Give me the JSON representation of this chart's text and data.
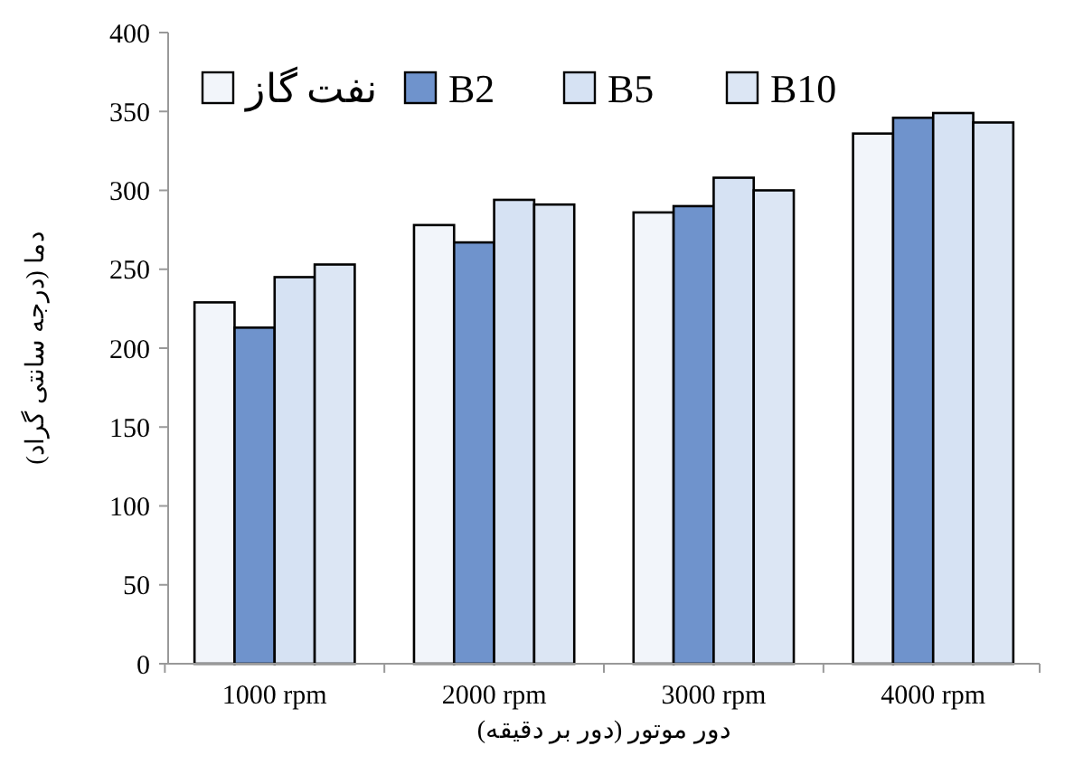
{
  "chart_data": {
    "type": "bar",
    "xlabel": "دور موتور (دور بر دقیقه)",
    "ylabel": "دما (درجه سانتی گراد)",
    "categories": [
      "1000 rpm",
      "2000 rpm",
      "3000 rpm",
      "4000 rpm"
    ],
    "series": [
      {
        "name": "نفت گاز",
        "color": "#f2f5fa",
        "values": [
          229,
          278,
          286,
          336
        ]
      },
      {
        "name": "B2",
        "color": "#6f93cc",
        "values": [
          213,
          267,
          290,
          346
        ]
      },
      {
        "name": "B5",
        "color": "#d6e2f3",
        "values": [
          245,
          294,
          308,
          349
        ]
      },
      {
        "name": "B10",
        "color": "#dce6f4",
        "values": [
          253,
          291,
          300,
          343
        ]
      }
    ],
    "ylim": [
      0,
      400
    ],
    "yticks": [
      0,
      50,
      100,
      150,
      200,
      250,
      300,
      350,
      400
    ],
    "grid": false,
    "legend": "top left"
  }
}
